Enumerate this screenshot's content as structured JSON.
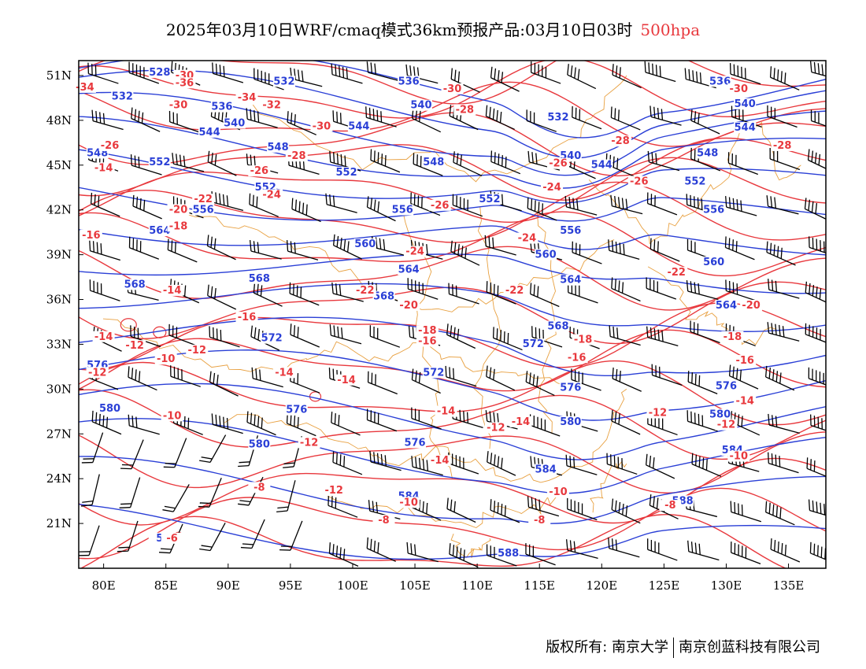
{
  "header": {
    "title": "2025年03月10日WRF/cmaq模式36km预报产品:03月10日03时",
    "level": "500hpa"
  },
  "map": {
    "lon_range": [
      78,
      138
    ],
    "lat_range": [
      18,
      52
    ],
    "lon_ticks": [
      "80E",
      "85E",
      "90E",
      "95E",
      "100E",
      "105E",
      "110E",
      "115E",
      "120E",
      "125E",
      "130E",
      "135E"
    ],
    "lat_ticks": [
      "51N",
      "48N",
      "45N",
      "42N",
      "39N",
      "36N",
      "33N",
      "30N",
      "27N",
      "24N",
      "21N"
    ],
    "colors": {
      "geopotential": "#2a3fd6",
      "temperature": "#e8383d",
      "boundary": "#e8a040",
      "wind": "#000000"
    },
    "geopotential_labels": [
      {
        "text": "528",
        "lon": 84.5,
        "lat": 51.0
      },
      {
        "text": "532",
        "lon": 81.5,
        "lat": 49.4
      },
      {
        "text": "532",
        "lon": 94.5,
        "lat": 50.4
      },
      {
        "text": "536",
        "lon": 104.5,
        "lat": 50.4
      },
      {
        "text": "536",
        "lon": 89.5,
        "lat": 48.7
      },
      {
        "text": "540",
        "lon": 90.5,
        "lat": 47.6
      },
      {
        "text": "540",
        "lon": 105.5,
        "lat": 48.8
      },
      {
        "text": "544",
        "lon": 88.5,
        "lat": 47.0
      },
      {
        "text": "544",
        "lon": 100.5,
        "lat": 47.4
      },
      {
        "text": "548",
        "lon": 79.5,
        "lat": 45.6
      },
      {
        "text": "548",
        "lon": 94.0,
        "lat": 46.0
      },
      {
        "text": "552",
        "lon": 84.5,
        "lat": 45.0
      },
      {
        "text": "552",
        "lon": 93.0,
        "lat": 43.3
      },
      {
        "text": "552",
        "lon": 99.5,
        "lat": 44.3
      },
      {
        "text": "548",
        "lon": 106.5,
        "lat": 45.0
      },
      {
        "text": "556",
        "lon": 88.0,
        "lat": 41.8
      },
      {
        "text": "556",
        "lon": 104.0,
        "lat": 41.8
      },
      {
        "text": "552",
        "lon": 111.0,
        "lat": 42.5
      },
      {
        "text": "560",
        "lon": 101.0,
        "lat": 39.5
      },
      {
        "text": "564",
        "lon": 84.5,
        "lat": 40.4
      },
      {
        "text": "568",
        "lon": 82.5,
        "lat": 36.8
      },
      {
        "text": "568",
        "lon": 92.5,
        "lat": 37.2
      },
      {
        "text": "564",
        "lon": 104.5,
        "lat": 37.8
      },
      {
        "text": "568",
        "lon": 102.5,
        "lat": 36.0
      },
      {
        "text": "572",
        "lon": 93.5,
        "lat": 33.2
      },
      {
        "text": "576",
        "lon": 79.5,
        "lat": 31.4
      },
      {
        "text": "572",
        "lon": 106.5,
        "lat": 30.9
      },
      {
        "text": "580",
        "lon": 80.5,
        "lat": 28.5
      },
      {
        "text": "576",
        "lon": 95.5,
        "lat": 28.4
      },
      {
        "text": "580",
        "lon": 92.5,
        "lat": 26.1
      },
      {
        "text": "576",
        "lon": 105.0,
        "lat": 26.2
      },
      {
        "text": "584",
        "lon": 104.5,
        "lat": 22.6
      },
      {
        "text": "588",
        "lon": 112.5,
        "lat": 18.8
      },
      {
        "text": "532",
        "lon": 116.5,
        "lat": 48.0
      },
      {
        "text": "540",
        "lon": 117.5,
        "lat": 45.4
      },
      {
        "text": "544",
        "lon": 120.0,
        "lat": 44.8
      },
      {
        "text": "556",
        "lon": 117.5,
        "lat": 40.4
      },
      {
        "text": "560",
        "lon": 115.5,
        "lat": 38.8
      },
      {
        "text": "564",
        "lon": 117.5,
        "lat": 37.1
      },
      {
        "text": "568",
        "lon": 116.5,
        "lat": 34.0
      },
      {
        "text": "572",
        "lon": 114.5,
        "lat": 32.8
      },
      {
        "text": "576",
        "lon": 117.5,
        "lat": 29.9
      },
      {
        "text": "580",
        "lon": 117.5,
        "lat": 27.6
      },
      {
        "text": "584",
        "lon": 115.5,
        "lat": 24.4
      },
      {
        "text": "536",
        "lon": 129.5,
        "lat": 50.4
      },
      {
        "text": "540",
        "lon": 131.5,
        "lat": 48.9
      },
      {
        "text": "544",
        "lon": 131.5,
        "lat": 47.3
      },
      {
        "text": "548",
        "lon": 128.5,
        "lat": 45.6
      },
      {
        "text": "552",
        "lon": 127.5,
        "lat": 43.7
      },
      {
        "text": "556",
        "lon": 129.0,
        "lat": 41.8
      },
      {
        "text": "560",
        "lon": 129.0,
        "lat": 38.3
      },
      {
        "text": "564",
        "lon": 130.0,
        "lat": 35.4
      },
      {
        "text": "576",
        "lon": 130.0,
        "lat": 30.0
      },
      {
        "text": "580",
        "lon": 129.5,
        "lat": 28.1
      },
      {
        "text": "584",
        "lon": 130.5,
        "lat": 25.7
      },
      {
        "text": "588",
        "lon": 126.5,
        "lat": 22.3
      },
      {
        "text": "5",
        "lon": 84.5,
        "lat": 19.8
      }
    ],
    "temperature_labels": [
      {
        "text": "-34",
        "lon": 78.5,
        "lat": 50.0
      },
      {
        "text": "-30",
        "lon": 86.5,
        "lat": 50.8
      },
      {
        "text": "-36",
        "lon": 86.5,
        "lat": 50.3
      },
      {
        "text": "-34",
        "lon": 91.5,
        "lat": 49.3
      },
      {
        "text": "-32",
        "lon": 93.5,
        "lat": 48.8
      },
      {
        "text": "-30",
        "lon": 86.0,
        "lat": 48.8
      },
      {
        "text": "-30",
        "lon": 97.5,
        "lat": 47.4
      },
      {
        "text": "-30",
        "lon": 108.0,
        "lat": 49.9
      },
      {
        "text": "-28",
        "lon": 109.0,
        "lat": 48.5
      },
      {
        "text": "-26",
        "lon": 80.5,
        "lat": 46.1
      },
      {
        "text": "-28",
        "lon": 95.5,
        "lat": 45.4
      },
      {
        "text": "-26",
        "lon": 92.5,
        "lat": 44.4
      },
      {
        "text": "-24",
        "lon": 93.5,
        "lat": 42.8
      },
      {
        "text": "-22",
        "lon": 88.0,
        "lat": 42.5
      },
      {
        "text": "-20",
        "lon": 86.0,
        "lat": 41.8
      },
      {
        "text": "-18",
        "lon": 86.0,
        "lat": 40.7
      },
      {
        "text": "-14",
        "lon": 80.0,
        "lat": 44.6
      },
      {
        "text": "-16",
        "lon": 79.0,
        "lat": 40.1
      },
      {
        "text": "-14",
        "lon": 85.5,
        "lat": 36.4
      },
      {
        "text": "-16",
        "lon": 91.5,
        "lat": 34.6
      },
      {
        "text": "-14",
        "lon": 80.0,
        "lat": 33.3
      },
      {
        "text": "-12",
        "lon": 82.5,
        "lat": 32.7
      },
      {
        "text": "-12",
        "lon": 87.5,
        "lat": 32.4
      },
      {
        "text": "-10",
        "lon": 85.0,
        "lat": 31.8
      },
      {
        "text": "-12",
        "lon": 79.5,
        "lat": 30.9
      },
      {
        "text": "-10",
        "lon": 85.5,
        "lat": 28.0
      },
      {
        "text": "-14",
        "lon": 94.5,
        "lat": 30.9
      },
      {
        "text": "-14",
        "lon": 99.5,
        "lat": 30.4
      },
      {
        "text": "-12",
        "lon": 96.5,
        "lat": 26.2
      },
      {
        "text": "-12",
        "lon": 98.5,
        "lat": 23.0
      },
      {
        "text": "-8",
        "lon": 92.5,
        "lat": 23.2
      },
      {
        "text": "-8",
        "lon": 102.5,
        "lat": 21.0
      },
      {
        "text": "-6",
        "lon": 85.5,
        "lat": 19.8
      },
      {
        "text": "-26",
        "lon": 107.0,
        "lat": 42.1
      },
      {
        "text": "-24",
        "lon": 105.0,
        "lat": 39.0
      },
      {
        "text": "-22",
        "lon": 101.0,
        "lat": 36.4
      },
      {
        "text": "-20",
        "lon": 104.5,
        "lat": 35.4
      },
      {
        "text": "-18",
        "lon": 106.0,
        "lat": 33.7
      },
      {
        "text": "-16",
        "lon": 106.0,
        "lat": 33.0
      },
      {
        "text": "-14",
        "lon": 107.5,
        "lat": 28.3
      },
      {
        "text": "-14",
        "lon": 107.0,
        "lat": 25.0
      },
      {
        "text": "-12",
        "lon": 111.5,
        "lat": 27.2
      },
      {
        "text": "-14",
        "lon": 113.5,
        "lat": 27.6
      },
      {
        "text": "-10",
        "lon": 104.5,
        "lat": 22.2
      },
      {
        "text": "-10",
        "lon": 116.5,
        "lat": 22.9
      },
      {
        "text": "-8",
        "lon": 115.0,
        "lat": 21.0
      },
      {
        "text": "-26",
        "lon": 116.5,
        "lat": 44.9
      },
      {
        "text": "-24",
        "lon": 116.0,
        "lat": 43.3
      },
      {
        "text": "-24",
        "lon": 114.0,
        "lat": 39.9
      },
      {
        "text": "-22",
        "lon": 113.0,
        "lat": 36.4
      },
      {
        "text": "-18",
        "lon": 118.5,
        "lat": 33.1
      },
      {
        "text": "-16",
        "lon": 118.0,
        "lat": 31.9
      },
      {
        "text": "-28",
        "lon": 121.5,
        "lat": 46.4
      },
      {
        "text": "-26",
        "lon": 123.0,
        "lat": 43.7
      },
      {
        "text": "-22",
        "lon": 126.0,
        "lat": 37.6
      },
      {
        "text": "-12",
        "lon": 124.5,
        "lat": 28.2
      },
      {
        "text": "-8",
        "lon": 125.5,
        "lat": 22.0
      },
      {
        "text": "-30",
        "lon": 131.0,
        "lat": 49.9
      },
      {
        "text": "-28",
        "lon": 134.5,
        "lat": 46.1
      },
      {
        "text": "-20",
        "lon": 132.0,
        "lat": 35.4
      },
      {
        "text": "-18",
        "lon": 130.5,
        "lat": 33.3
      },
      {
        "text": "-16",
        "lon": 131.5,
        "lat": 31.7
      },
      {
        "text": "-14",
        "lon": 131.5,
        "lat": 29.0
      },
      {
        "text": "-12",
        "lon": 130.0,
        "lat": 27.4
      },
      {
        "text": "-10",
        "lon": 131.0,
        "lat": 25.3
      }
    ]
  },
  "footer": {
    "copyright": "版权所有: 南京大学",
    "company": "南京创蓝科技有限公司"
  }
}
